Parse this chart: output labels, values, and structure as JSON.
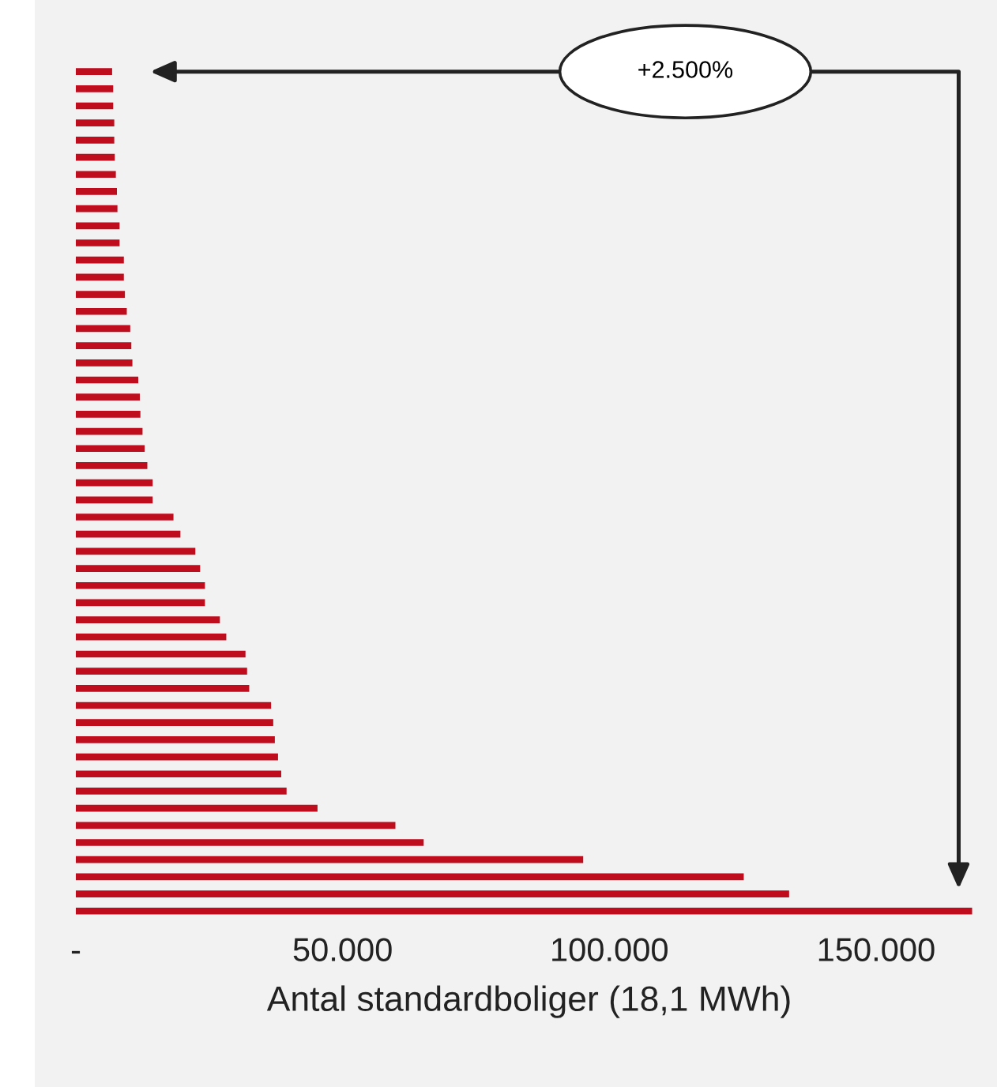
{
  "chart_data": {
    "type": "bar",
    "orientation": "horizontal",
    "xlabel": "Antal standardboliger (18,1 MWh)",
    "categories": [
      null,
      null,
      null,
      null,
      null,
      null,
      null,
      null,
      null,
      null,
      null,
      null,
      null,
      null,
      null,
      null,
      null,
      null,
      null,
      null,
      null,
      null,
      null,
      null,
      null,
      null,
      null,
      null,
      null,
      null,
      null,
      null,
      null,
      null,
      null,
      null,
      null,
      null,
      null,
      null,
      null,
      null,
      null,
      null,
      null,
      null,
      null,
      null,
      null,
      null
    ],
    "values": [
      6800,
      7000,
      7000,
      7200,
      7200,
      7300,
      7500,
      7700,
      7800,
      8200,
      8200,
      9000,
      9000,
      9200,
      9550,
      10200,
      10400,
      10600,
      11700,
      12000,
      12100,
      12500,
      12900,
      13400,
      14400,
      14400,
      18300,
      19600,
      22400,
      23300,
      24200,
      24200,
      27000,
      28200,
      31800,
      32100,
      32500,
      36600,
      37000,
      37300,
      37900,
      38500,
      39500,
      45300,
      59900,
      65200,
      95100,
      125200,
      133700,
      168000
    ],
    "color": "#c00d1e",
    "xlim": [
      0,
      170000
    ],
    "xticks": [
      {
        "value": 0,
        "label": "-"
      },
      {
        "value": 50000,
        "label": "50.000"
      },
      {
        "value": 100000,
        "label": "100.000"
      },
      {
        "value": 150000,
        "label": "150.000"
      }
    ],
    "tick_labels": "x",
    "grid": false,
    "legend": false,
    "annotations": [
      "+2.500%"
    ]
  }
}
